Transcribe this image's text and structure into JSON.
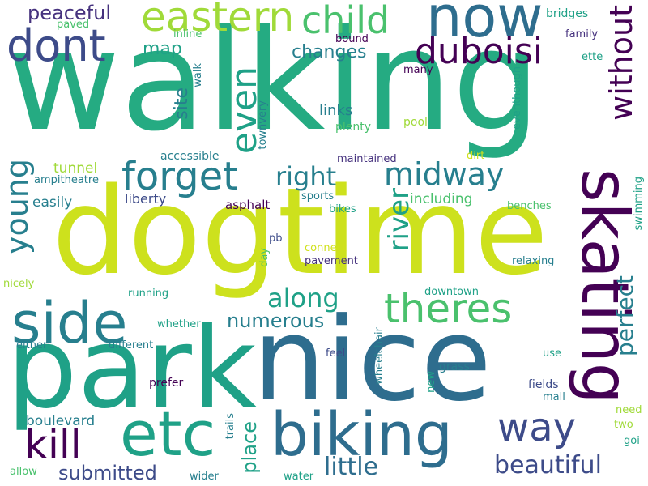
{
  "cloud": {
    "background": "#ffffff",
    "palette": [
      "#440154",
      "#46327e",
      "#365c8d",
      "#277f8e",
      "#1fa187",
      "#4ac16d",
      "#a0da39",
      "#d0e11c"
    ],
    "words": {
      "walking": "walking",
      "dogtime": "dogtime",
      "nice": "nice",
      "park": "park",
      "skating": "skating",
      "biking": "biking",
      "etc": "etc",
      "side": "side",
      "now": "now",
      "theres": "theres",
      "forget": "forget",
      "midway": "midway",
      "dont": "dont",
      "easterni": "eastern",
      "child": "child",
      "duboisi": "duboisi",
      "without": "without",
      "way": "way",
      "kill": "kill",
      "young": "young",
      "even": "even",
      "right": "right",
      "river": "river",
      "along": "along",
      "beautiful": "beautiful",
      "perfect": "perfect",
      "little": "little",
      "peaceful": "peaceful",
      "numerous": "numerous",
      "place": "place",
      "submitted": "submitted",
      "changes": "changes",
      "site": "site",
      "map": "map",
      "links": "links",
      "boulevard": "boulevard",
      "including": "including",
      "easily": "easily",
      "tunnel": "tunnel",
      "liberty": "liberty",
      "asphalt": "asphalt",
      "ampitheatre": "ampitheatre",
      "accessible": "accessible",
      "maintained": "maintained",
      "bridges": "bridges",
      "paved": "paved",
      "inline": "inline",
      "bound": "bound",
      "family": "family",
      "ette": "ette",
      "walk": "walk",
      "many": "many",
      "eventhough": "eventhough",
      "plenty": "plenty",
      "pool": "pool",
      "townvery": "townvery",
      "dirt": "dirt",
      "sports": "sports",
      "benches": "benches",
      "bikes": "bikes",
      "swimming": "swimming",
      "pb": "pb",
      "connect": "connect",
      "day": "day",
      "pavement": "pavement",
      "relaxing": "relaxing",
      "nicely": "nicely",
      "running": "running",
      "downtown": "downtown",
      "whether": "whether",
      "either": "either",
      "different": "different",
      "feel": "feel",
      "use": "use",
      "prefer": "prefer",
      "wheelchair": "wheelchair",
      "grass": "grass",
      "new": "new",
      "fields": "fields",
      "mall": "mall",
      "need": "need",
      "trails": "trails",
      "two": "two",
      "goi": "goi",
      "allow": "allow",
      "wider": "wider",
      "water": "water"
    }
  }
}
